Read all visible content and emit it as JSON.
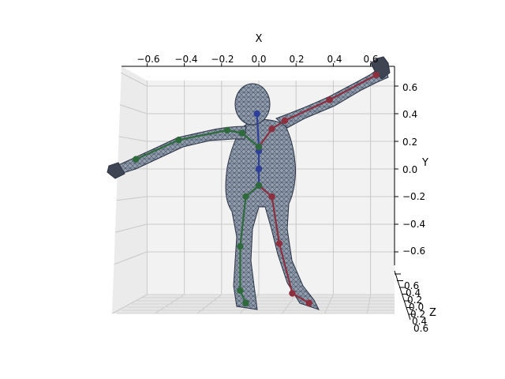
{
  "chart_data": {
    "type": "scatter",
    "projection": "3d",
    "title": "",
    "xlabel": "X",
    "ylabel": "Y",
    "zlabel": "Z",
    "x_ticks": [
      "−0.6",
      "−0.4",
      "−0.2",
      "0.0",
      "0.2",
      "0.4",
      "0.6"
    ],
    "y_ticks": [
      "0.6",
      "0.4",
      "0.2",
      "0.0",
      "−0.2",
      "−0.4",
      "−0.6"
    ],
    "z_ticks": [
      "0.6",
      "0.4",
      "0.2",
      "0.0",
      "0.2",
      "0.4",
      "0.6"
    ],
    "xlim": [
      -0.75,
      0.72
    ],
    "ylim": [
      -0.72,
      0.72
    ],
    "zlim": [
      -0.6,
      0.6
    ],
    "grid": true,
    "mesh_color": "#8a94a0",
    "mesh_edge_color": "#2a3a55",
    "series": [
      {
        "color": "#2e3f99",
        "joints": [
          {
            "x": -0.01,
            "y": 0.4
          },
          {
            "x": 0.0,
            "y": 0.16
          },
          {
            "x": 0.0,
            "y": 0.13
          },
          {
            "x": 0.0,
            "y": 0.0
          },
          {
            "x": 0.0,
            "y": -0.12
          }
        ]
      },
      {
        "color": "#8c3040",
        "joints": [
          {
            "x": 0.0,
            "y": 0.16
          },
          {
            "x": 0.07,
            "y": 0.29
          },
          {
            "x": 0.14,
            "y": 0.35
          },
          {
            "x": 0.38,
            "y": 0.5
          },
          {
            "x": 0.63,
            "y": 0.68
          },
          {
            "x": 0.0,
            "y": -0.12
          },
          {
            "x": 0.07,
            "y": -0.2
          },
          {
            "x": 0.11,
            "y": -0.54
          },
          {
            "x": 0.18,
            "y": -0.9
          },
          {
            "x": 0.27,
            "y": -0.97
          }
        ]
      },
      {
        "color": "#2e6a3c",
        "joints": [
          {
            "x": 0.0,
            "y": 0.16
          },
          {
            "x": -0.09,
            "y": 0.26
          },
          {
            "x": -0.17,
            "y": 0.28
          },
          {
            "x": -0.43,
            "y": 0.21
          },
          {
            "x": -0.66,
            "y": 0.07
          },
          {
            "x": 0.0,
            "y": -0.12
          },
          {
            "x": -0.07,
            "y": -0.2
          },
          {
            "x": -0.1,
            "y": -0.56
          },
          {
            "x": -0.1,
            "y": -0.88
          },
          {
            "x": -0.07,
            "y": -0.97
          }
        ]
      }
    ]
  }
}
